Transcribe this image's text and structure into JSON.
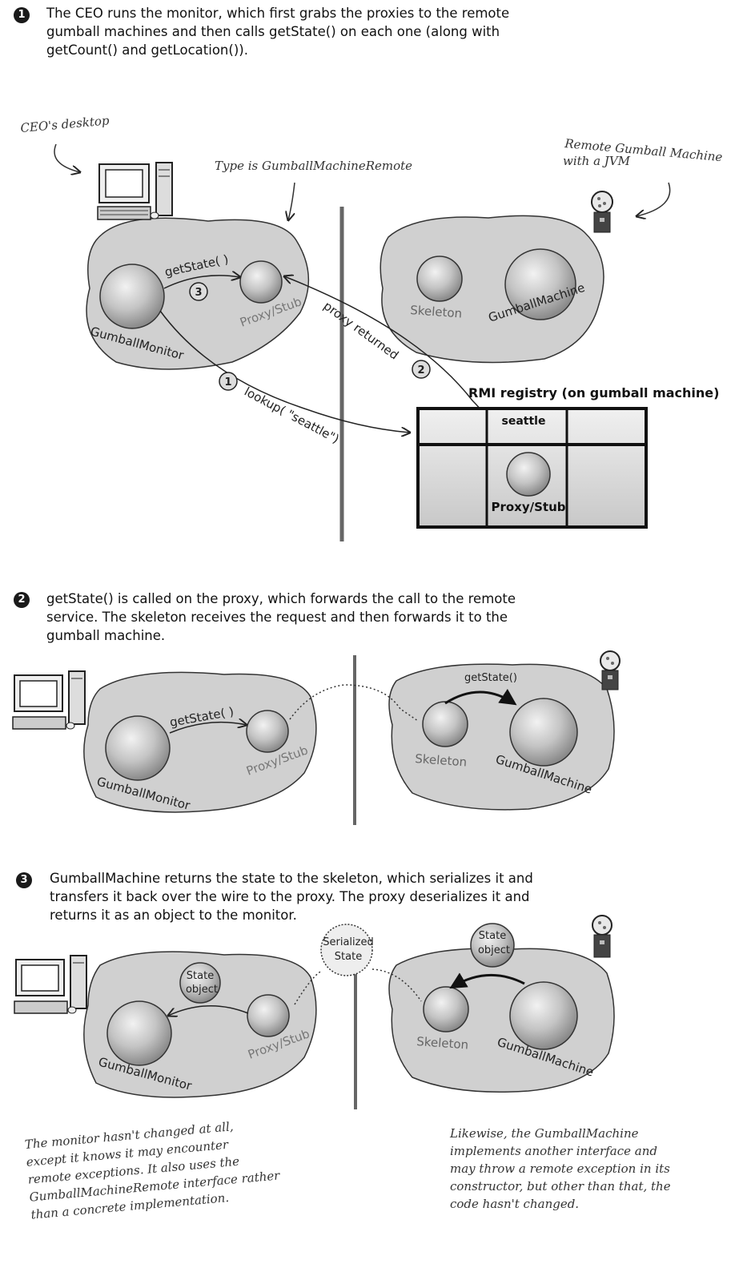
{
  "steps": [
    {
      "num": "1",
      "text": "The CEO runs the monitor, which first grabs the proxies to the remote\ngumball machines and then calls getState() on each one (along with\ngetCount() and getLocation())."
    },
    {
      "num": "2",
      "text": "getState() is called on the proxy, which forwards the call to the remote\nservice.  The skeleton receives the request and then forwards it to the\ngumball machine."
    },
    {
      "num": "3",
      "text": "GumballMachine returns the state to the skeleton, which serializes it and\ntransfers it back over the wire to the proxy.  The proxy deserializes it and\nreturns it as an object to the monitor."
    }
  ],
  "diagram1": {
    "ceo_desktop_label": "CEO's desktop",
    "type_label": "Type is GumballMachineRemote",
    "remote_label_line1": "Remote Gumball Machine",
    "remote_label_line2": "with a JVM",
    "monitor": "GumballMonitor",
    "proxy": "Proxy/Stub",
    "skeleton": "Skeleton",
    "gumball_machine": "GumballMachine",
    "call_label": "getState( )",
    "call_num": "3",
    "proxy_returned": "proxy returned",
    "proxy_returned_num": "2",
    "lookup": "lookup( \"seattle\")",
    "lookup_num": "1",
    "registry_title": "RMI registry (on gumball machine)",
    "registry_key": "seattle",
    "registry_value": "Proxy/Stub"
  },
  "diagram2": {
    "monitor": "GumballMonitor",
    "proxy": "Proxy/Stub",
    "skeleton": "Skeleton",
    "gumball_machine": "GumballMachine",
    "call_label": "getState( )",
    "remote_call_label": "getState()"
  },
  "diagram3": {
    "monitor": "GumballMonitor",
    "proxy": "Proxy/Stub",
    "skeleton": "Skeleton",
    "gumball_machine": "GumballMachine",
    "state_line1": "State",
    "state_line2": "object",
    "serialized_line1": "Serialized",
    "serialized_line2": "State",
    "remote_state_line1": "State",
    "remote_state_line2": "object"
  },
  "notes": {
    "left": "The monitor hasn't changed at all,\nexcept it knows it may encounter\nremote exceptions.  It also uses the\nGumballMachineRemote interface rather\nthan a concrete implementation.",
    "right": "Likewise, the GumballMachine\nimplements another interface and\nmay throw a remote exception in its\nconstructor, but other than that, the\ncode hasn't changed."
  }
}
